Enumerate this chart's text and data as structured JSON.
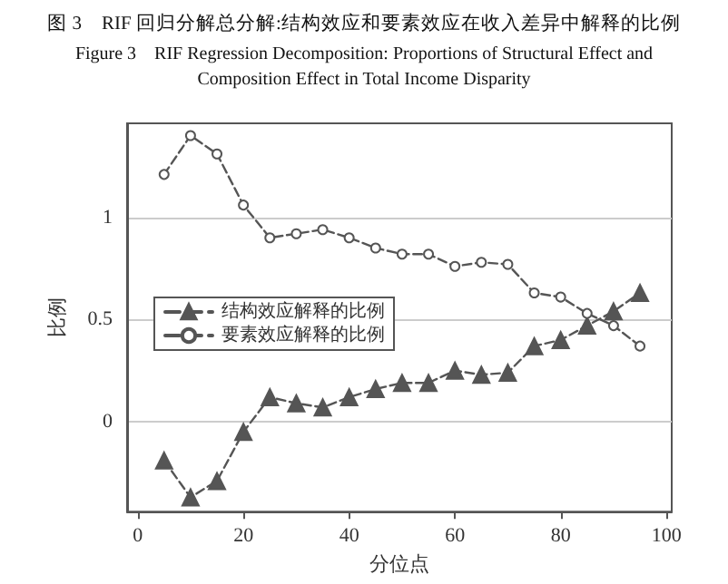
{
  "chart_data": {
    "type": "line",
    "title": "图 3　RIF 回归分解总分解:结构效应和要素效应在收入差异中解释的比例",
    "subtitle": "Figure 3　RIF Regression Decomposition: Proportions of Structural Effect and\nComposition Effect in Total Income Disparity",
    "xlabel": "分位点",
    "ylabel": "比例",
    "x": [
      5,
      10,
      15,
      20,
      25,
      30,
      35,
      40,
      45,
      50,
      55,
      60,
      65,
      70,
      75,
      80,
      85,
      90,
      95
    ],
    "series": [
      {
        "name": "结构效应解释的比例",
        "color": "#555555",
        "marker": "triangle",
        "values": [
          -0.19,
          -0.37,
          -0.29,
          -0.05,
          0.12,
          0.09,
          0.07,
          0.12,
          0.16,
          0.19,
          0.19,
          0.25,
          0.23,
          0.24,
          0.37,
          0.4,
          0.47,
          0.54,
          0.63
        ]
      },
      {
        "name": "要素效应解释的比例",
        "color": "#555555",
        "marker": "circle",
        "values": [
          1.21,
          1.4,
          1.31,
          1.06,
          0.9,
          0.92,
          0.94,
          0.9,
          0.85,
          0.82,
          0.82,
          0.76,
          0.78,
          0.77,
          0.63,
          0.61,
          0.53,
          0.47,
          0.37
        ]
      }
    ],
    "xlim": [
      -2,
      101
    ],
    "xticks": [
      0,
      20,
      40,
      60,
      80,
      100
    ],
    "ylim": [
      -0.44,
      1.46
    ],
    "yticks": [
      0,
      0.5,
      1
    ],
    "grid": "y",
    "legend": "left",
    "line_style": "dashed"
  }
}
